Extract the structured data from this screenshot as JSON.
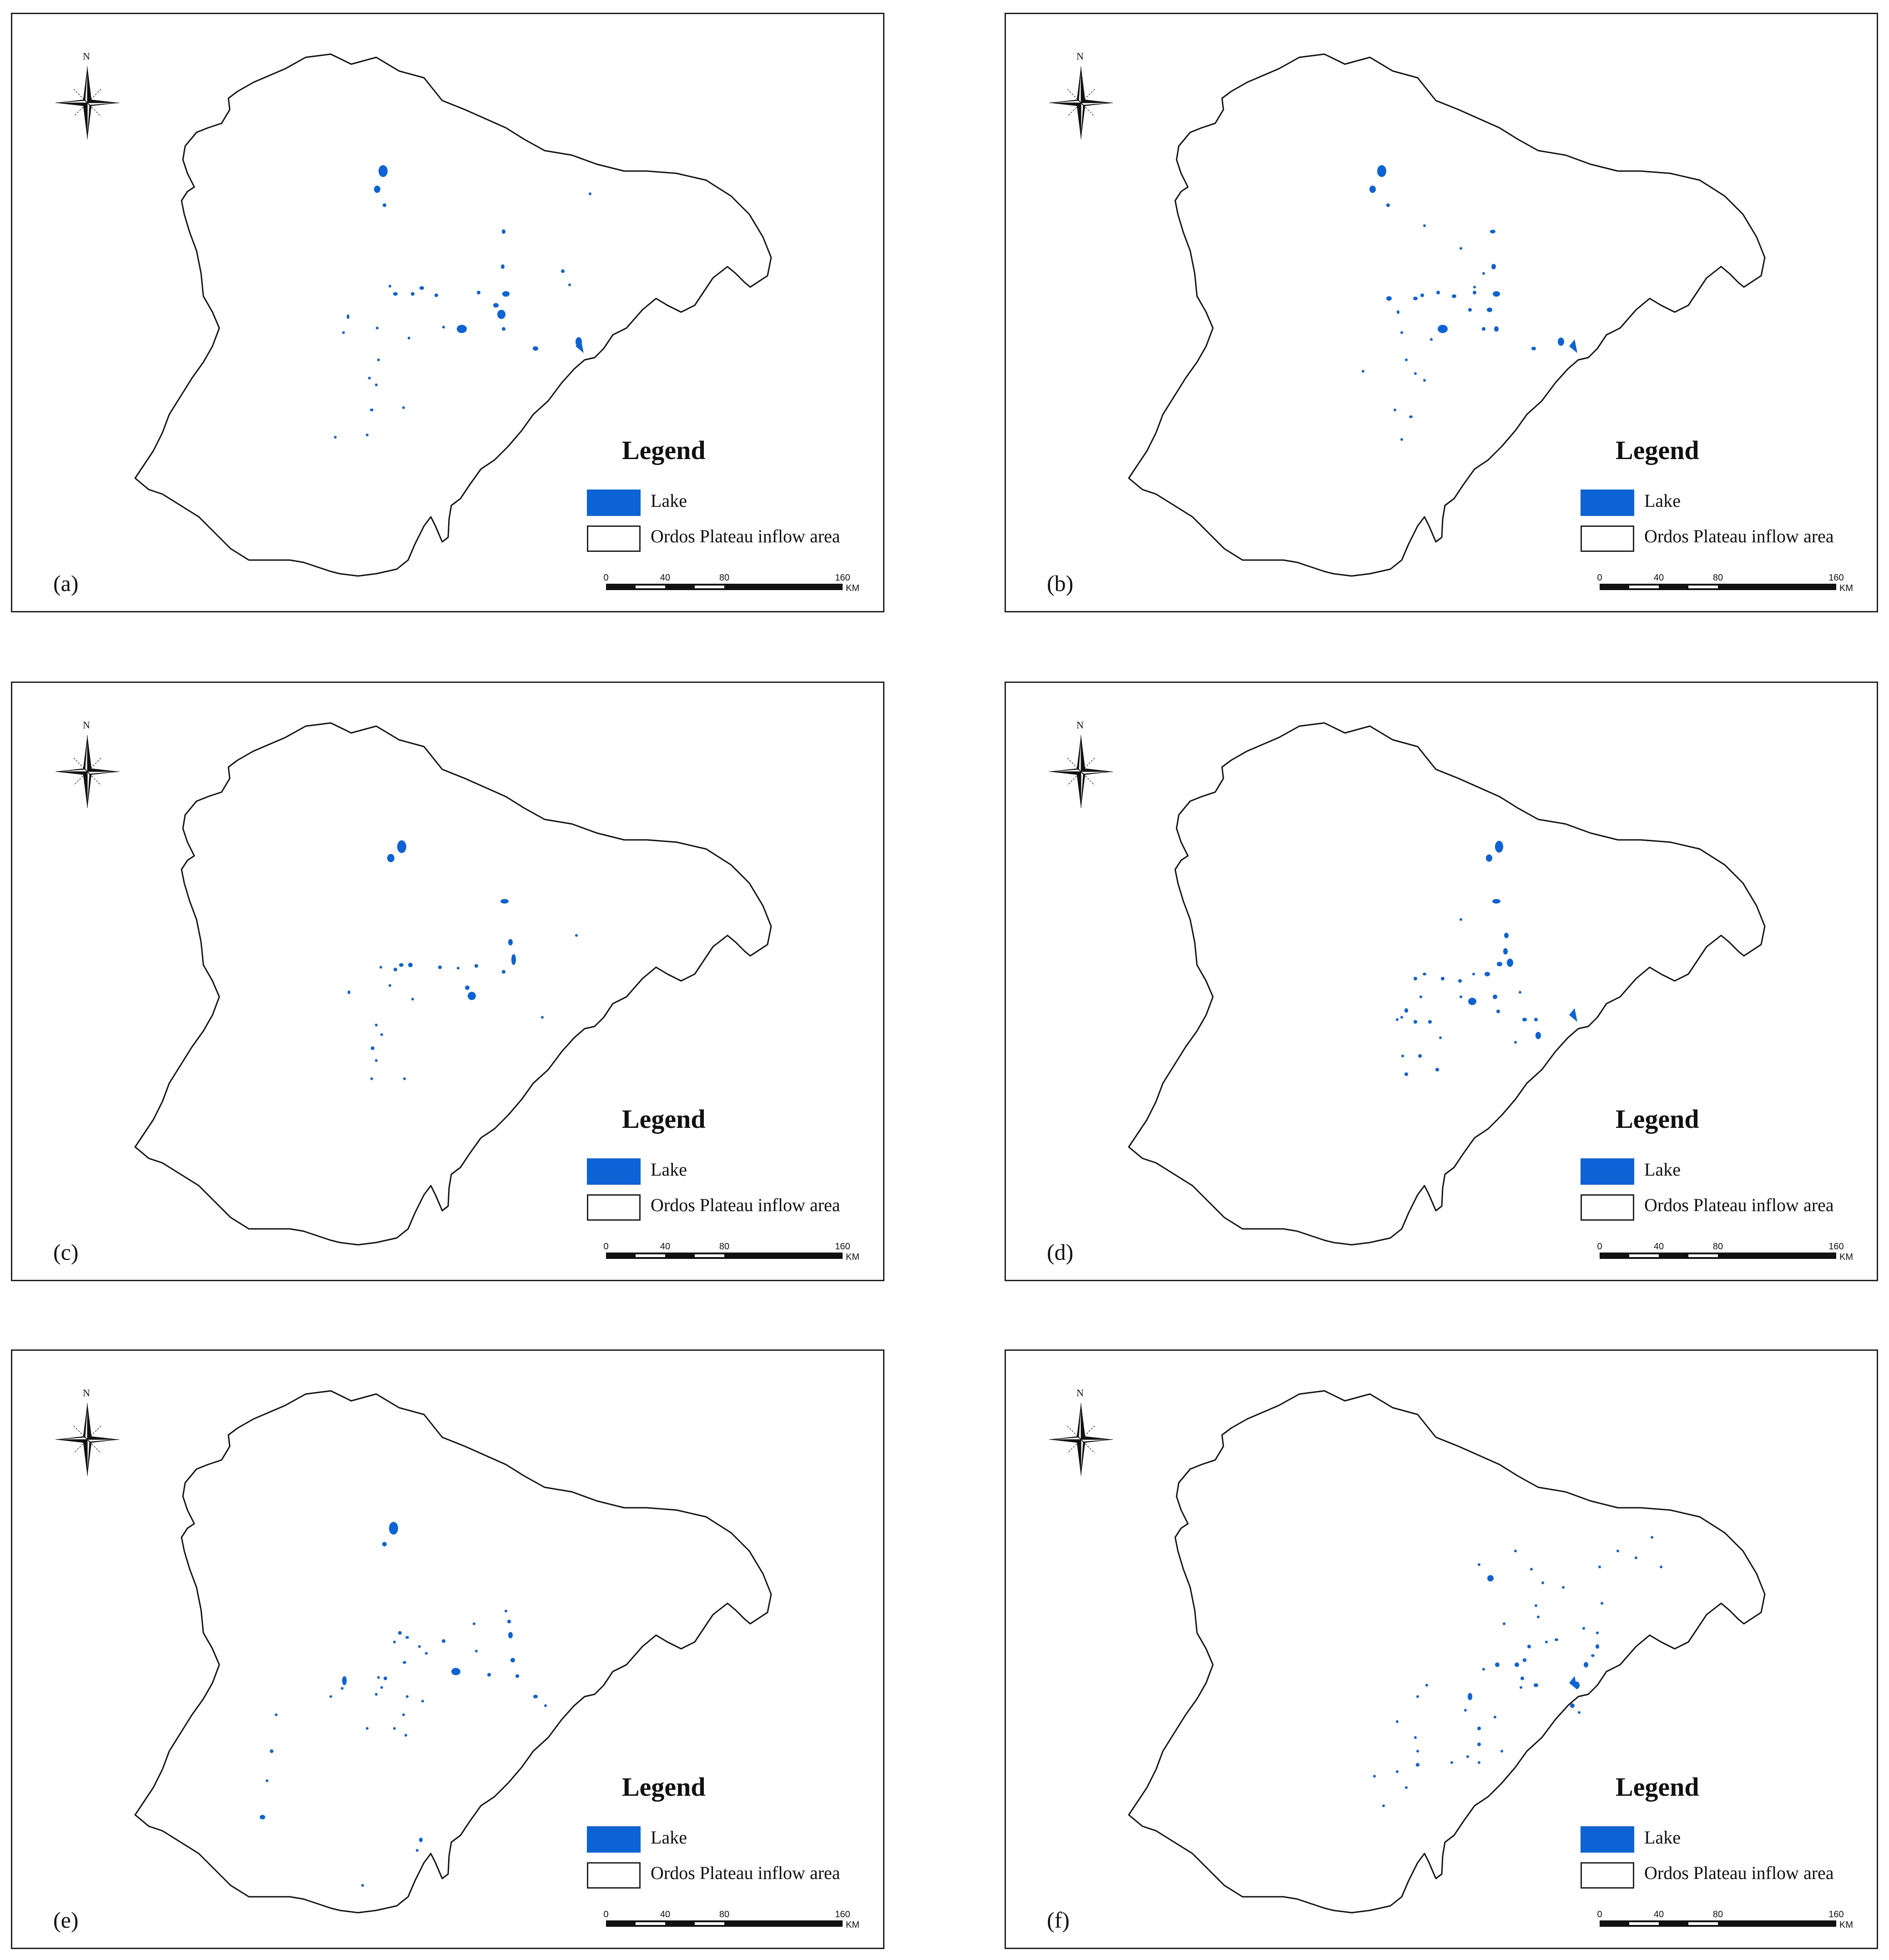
{
  "panels": [
    {
      "id": "a",
      "label": "(a)",
      "lake_set": "a"
    },
    {
      "id": "b",
      "label": "(b)",
      "lake_set": "b"
    },
    {
      "id": "c",
      "label": "(c)",
      "lake_set": "c"
    },
    {
      "id": "d",
      "label": "(d)",
      "lake_set": "d"
    },
    {
      "id": "e",
      "label": "(e)",
      "lake_set": "e"
    },
    {
      "id": "f",
      "label": "(f)",
      "lake_set": "f"
    }
  ],
  "legend": {
    "title": "Legend",
    "items": [
      {
        "label": "Lake",
        "color": "#0b63d6"
      },
      {
        "label": "Ordos Plateau inflow area",
        "color": "#ffffff"
      }
    ]
  },
  "scale_bar": {
    "ticks": [
      "0",
      "40",
      "80",
      "160"
    ],
    "unit": "KM"
  },
  "north_arrow": {
    "label": "N"
  },
  "colors": {
    "lake": "#0b63d6",
    "boundary": "#111111"
  }
}
